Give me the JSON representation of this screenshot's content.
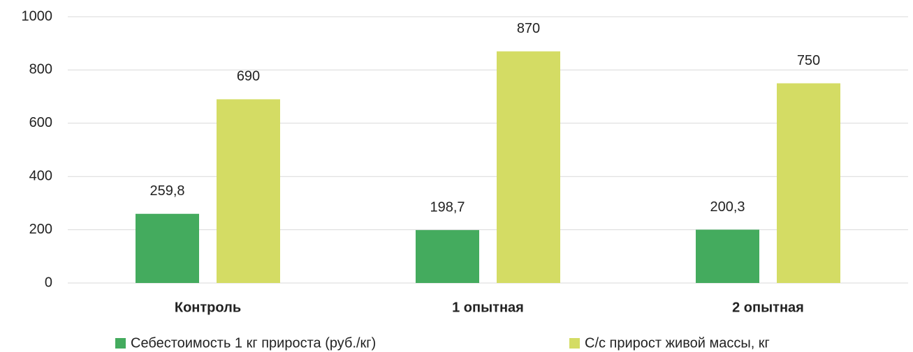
{
  "chart_data": {
    "type": "bar",
    "categories": [
      "Контроль",
      "1 опытная",
      "2 опытная"
    ],
    "series": [
      {
        "name": "Себестоимость 1 кг прироста (руб./кг)",
        "color": "#44ab5e",
        "values": [
          259.8,
          198.7,
          200.3
        ],
        "value_labels": [
          "259,8",
          "198,7",
          "200,3"
        ]
      },
      {
        "name": "С/с прирост живой массы, кг",
        "color": "#d4dc64",
        "values": [
          690,
          870,
          750
        ],
        "value_labels": [
          "690",
          "870",
          "750"
        ]
      }
    ],
    "ylim": [
      0,
      1000
    ],
    "yticks": [
      0,
      200,
      400,
      600,
      800,
      1000
    ],
    "grid": true
  }
}
